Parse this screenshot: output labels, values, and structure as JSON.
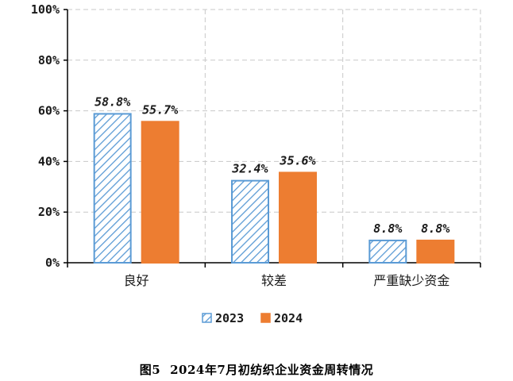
{
  "caption": {
    "figure_no": "图5",
    "text": "2024年7月初纺织企业资金周转情况"
  },
  "colors": {
    "series_2023": "#5b9bd5",
    "series_2024": "#ed7d31",
    "grid": "#c8c8c8",
    "axis": "#000000"
  },
  "chart_data": {
    "type": "bar",
    "categories": [
      "良好",
      "较差",
      "严重缺少资金"
    ],
    "series": [
      {
        "name": "2023",
        "values": [
          58.8,
          32.4,
          8.8
        ],
        "labels": [
          "58.8%",
          "32.4%",
          "8.8%"
        ],
        "pattern": "diagonal-hatch"
      },
      {
        "name": "2024",
        "values": [
          55.7,
          35.6,
          8.8
        ],
        "labels": [
          "55.7%",
          "35.6%",
          "8.8%"
        ],
        "pattern": "solid"
      }
    ],
    "ylim": [
      0,
      100
    ],
    "yticks": [
      "0%",
      "20%",
      "40%",
      "60%",
      "80%",
      "100%"
    ],
    "grid": true,
    "legend_position": "bottom"
  }
}
